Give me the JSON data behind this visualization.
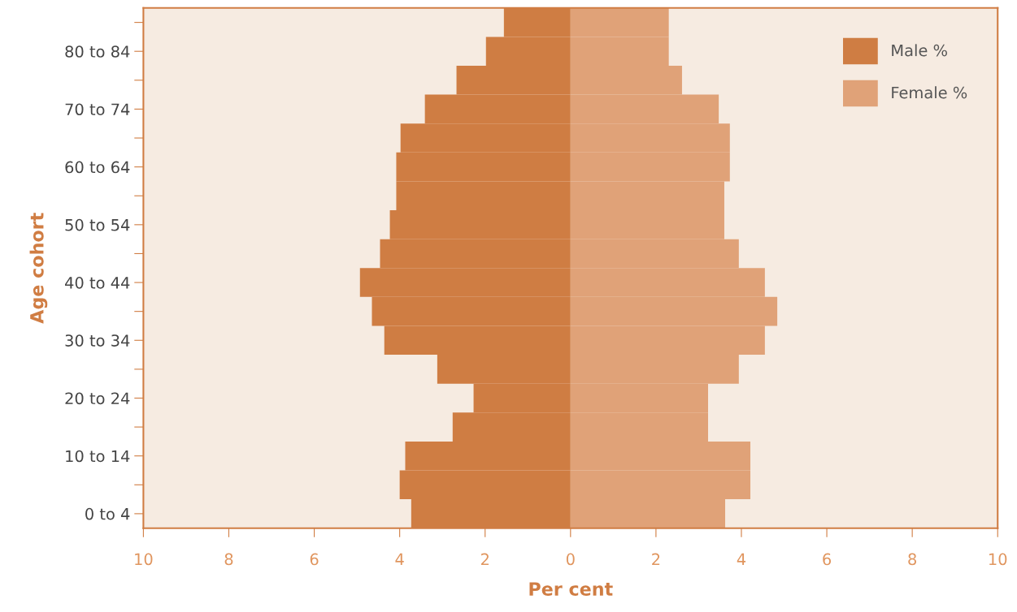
{
  "chart_data": {
    "type": "bar",
    "orientation": "horizontal",
    "stacked": true,
    "xlabel": "Per cent",
    "ylabel": "Age cohort",
    "categories": [
      null,
      "80 to 84",
      null,
      "70 to 74",
      null,
      "60 to 64",
      null,
      "50 to 54",
      null,
      "40 to 44",
      null,
      "30 to 34",
      null,
      "20 to 24",
      null,
      "10 to 14",
      null,
      "0 to 4"
    ],
    "series": [
      {
        "name": "Male %",
        "color": "#cf7d43",
        "values": [
          -1.56,
          -1.98,
          -2.67,
          -3.41,
          -3.98,
          -4.08,
          -4.08,
          -4.23,
          -4.46,
          -4.93,
          -4.65,
          -4.36,
          -3.12,
          -2.27,
          -2.76,
          -3.87,
          -4.0,
          -3.73
        ]
      },
      {
        "name": "Female %",
        "color": "#e0a278",
        "values": [
          2.3,
          2.3,
          2.61,
          3.47,
          3.73,
          3.73,
          3.6,
          3.6,
          3.94,
          4.55,
          4.84,
          4.55,
          3.94,
          3.22,
          3.22,
          4.21,
          4.21,
          3.62
        ]
      }
    ],
    "xlim": [
      -10,
      10
    ],
    "xticks": [
      {
        "value": -10,
        "label": "10"
      },
      {
        "value": -8,
        "label": "8"
      },
      {
        "value": -6,
        "label": "6"
      },
      {
        "value": -4,
        "label": "4"
      },
      {
        "value": -2,
        "label": "2"
      },
      0,
      2,
      4,
      6,
      8,
      10
    ],
    "legend": "top right",
    "grid": false
  }
}
